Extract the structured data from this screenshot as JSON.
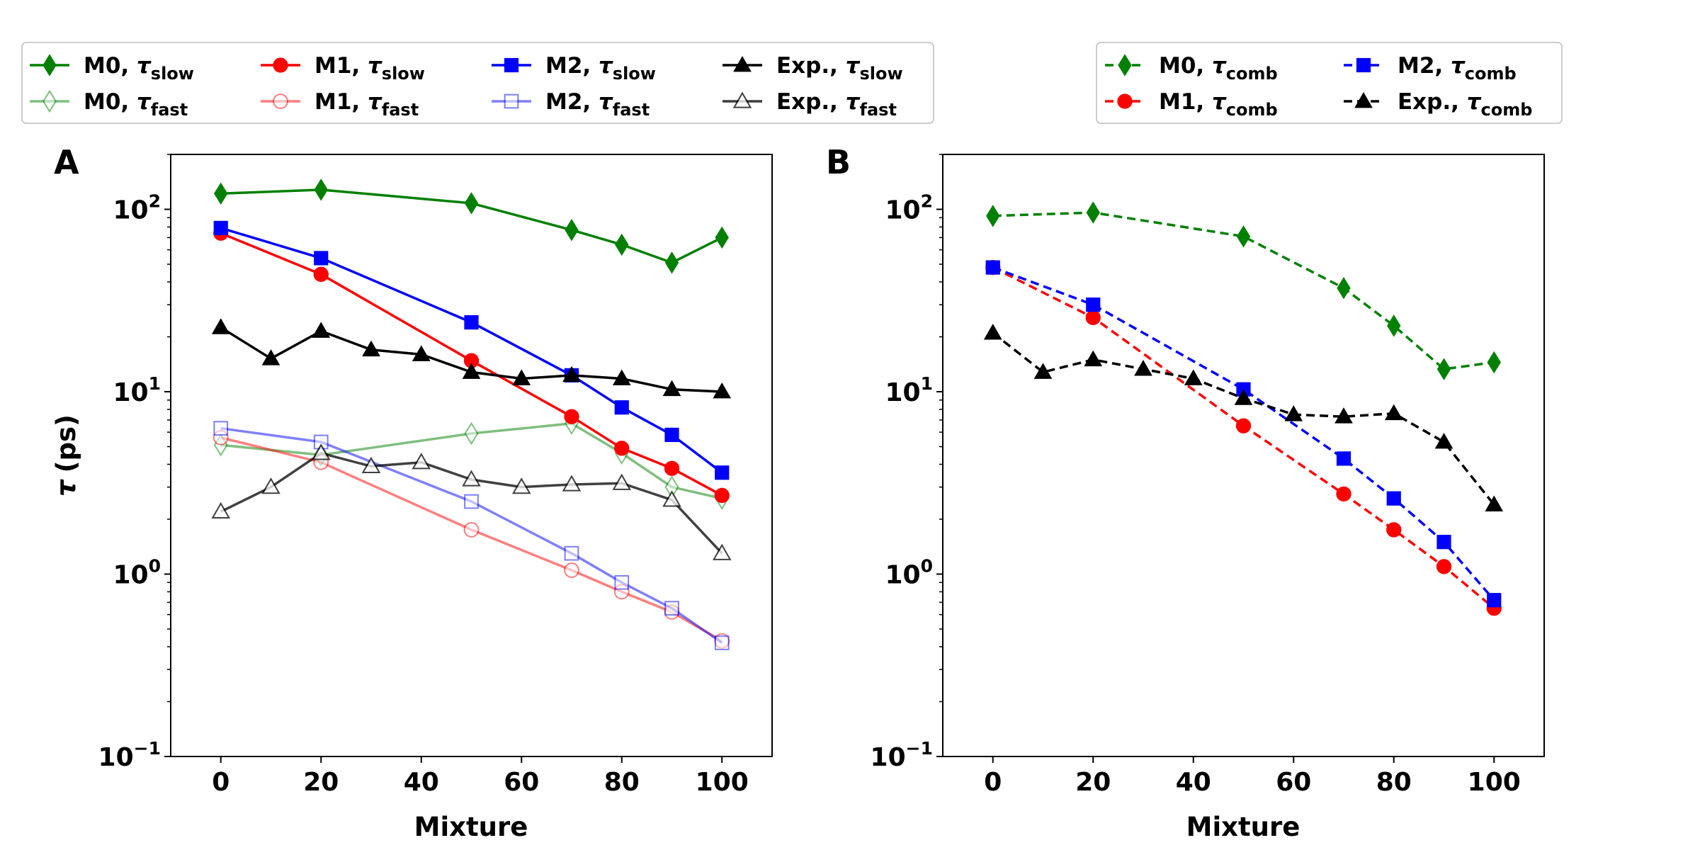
{
  "figure": {
    "panel_labels": [
      "A",
      "B"
    ],
    "tau_sub": {
      "slow": "slow",
      "fast": "fast",
      "comb": "comb"
    }
  },
  "chart_data": [
    {
      "panel": "A",
      "type": "line",
      "xlabel": "Mixture",
      "ylabel_symbol": "τ",
      "ylabel_unit": "(ps)",
      "yscale": "log",
      "xlim": [
        -10,
        110
      ],
      "ylim": [
        0.1,
        200
      ],
      "xticks": [
        0,
        20,
        40,
        60,
        80,
        100
      ],
      "xtick_labels": [
        "0",
        "20",
        "40",
        "60",
        "80",
        "100"
      ],
      "yticks": [
        {
          "value": 0.1,
          "base": "10",
          "exp": "−1"
        },
        {
          "value": 1,
          "base": "10",
          "exp": "0"
        },
        {
          "value": 10,
          "base": "10",
          "exp": "1"
        },
        {
          "value": 100,
          "base": "10",
          "exp": "2"
        }
      ],
      "legend_position": "top-left, above plot",
      "series": [
        {
          "name": "M0, τslow",
          "label_prefix": "M0, ",
          "label_sub": "slow",
          "color": "#008000",
          "opacity": 1,
          "marker": "diamond",
          "filled": true,
          "dashed": false,
          "x": [
            0,
            20,
            50,
            70,
            80,
            90,
            100
          ],
          "y": [
            122,
            128,
            108,
            77,
            64,
            51,
            70
          ]
        },
        {
          "name": "M0, τfast",
          "label_prefix": "M0, ",
          "label_sub": "fast",
          "color": "#008000",
          "opacity": 0.5,
          "marker": "diamond",
          "filled": false,
          "dashed": false,
          "x": [
            0,
            20,
            50,
            70,
            80,
            90,
            100
          ],
          "y": [
            5.1,
            4.5,
            5.9,
            6.7,
            4.6,
            3.0,
            2.6
          ]
        },
        {
          "name": "M1, τslow",
          "label_prefix": "M1, ",
          "label_sub": "slow",
          "color": "#ff0000",
          "opacity": 1,
          "marker": "circle",
          "filled": true,
          "dashed": false,
          "x": [
            0,
            20,
            50,
            70,
            80,
            90,
            100
          ],
          "y": [
            74,
            44,
            14.8,
            7.3,
            4.9,
            3.8,
            2.7
          ]
        },
        {
          "name": "M1, τfast",
          "label_prefix": "M1, ",
          "label_sub": "fast",
          "color": "#ff0000",
          "opacity": 0.5,
          "marker": "circle",
          "filled": false,
          "dashed": false,
          "x": [
            0,
            20,
            50,
            70,
            80,
            90,
            100
          ],
          "y": [
            5.6,
            4.1,
            1.75,
            1.05,
            0.8,
            0.62,
            0.43
          ]
        },
        {
          "name": "M2, τslow",
          "label_prefix": "M2, ",
          "label_sub": "slow",
          "color": "#0000ff",
          "opacity": 1,
          "marker": "square",
          "filled": true,
          "dashed": false,
          "x": [
            0,
            20,
            50,
            70,
            80,
            90,
            100
          ],
          "y": [
            79,
            54,
            24,
            12.3,
            8.2,
            5.8,
            3.6
          ]
        },
        {
          "name": "M2, τfast",
          "label_prefix": "M2, ",
          "label_sub": "fast",
          "color": "#0000ff",
          "opacity": 0.5,
          "marker": "square",
          "filled": false,
          "dashed": false,
          "x": [
            0,
            20,
            50,
            70,
            80,
            90,
            100
          ],
          "y": [
            6.3,
            5.3,
            2.5,
            1.3,
            0.9,
            0.65,
            0.42
          ]
        },
        {
          "name": "Exp., τslow",
          "label_prefix": "Exp., ",
          "label_sub": "slow",
          "color": "#000000",
          "opacity": 1,
          "marker": "triangle",
          "filled": true,
          "dashed": false,
          "x": [
            0,
            10,
            20,
            30,
            40,
            50,
            60,
            70,
            80,
            90,
            100
          ],
          "y": [
            22.5,
            15.2,
            21.5,
            17,
            16,
            12.8,
            11.8,
            12.3,
            11.8,
            10.3,
            10
          ]
        },
        {
          "name": "Exp., τfast",
          "label_prefix": "Exp., ",
          "label_sub": "fast",
          "color": "#000000",
          "opacity": 0.75,
          "marker": "triangle",
          "filled": false,
          "dashed": false,
          "x": [
            0,
            10,
            20,
            30,
            40,
            50,
            60,
            70,
            80,
            90,
            100
          ],
          "y": [
            2.2,
            3.0,
            4.6,
            3.9,
            4.1,
            3.3,
            3.0,
            3.1,
            3.15,
            2.55,
            1.3
          ]
        }
      ]
    },
    {
      "panel": "B",
      "type": "line",
      "xlabel": "Mixture",
      "yscale": "log",
      "xlim": [
        -10,
        110
      ],
      "ylim": [
        0.1,
        200
      ],
      "xticks": [
        0,
        20,
        40,
        60,
        80,
        100
      ],
      "xtick_labels": [
        "0",
        "20",
        "40",
        "60",
        "80",
        "100"
      ],
      "yticks": [
        {
          "value": 0.1,
          "base": "10",
          "exp": "−1"
        },
        {
          "value": 1,
          "base": "10",
          "exp": "0"
        },
        {
          "value": 10,
          "base": "10",
          "exp": "1"
        },
        {
          "value": 100,
          "base": "10",
          "exp": "2"
        }
      ],
      "legend_position": "top-right, above plot",
      "series": [
        {
          "name": "M0, τcomb",
          "label_prefix": "M0, ",
          "label_sub": "comb",
          "color": "#008000",
          "opacity": 1,
          "marker": "diamond",
          "filled": true,
          "dashed": true,
          "x": [
            0,
            20,
            50,
            70,
            80,
            90,
            100
          ],
          "y": [
            92,
            96,
            71,
            37,
            23,
            13.3,
            14.5
          ]
        },
        {
          "name": "M1, τcomb",
          "label_prefix": "M1, ",
          "label_sub": "comb",
          "color": "#ff0000",
          "opacity": 1,
          "marker": "circle",
          "filled": true,
          "dashed": true,
          "x": [
            0,
            20,
            50,
            70,
            80,
            90,
            100
          ],
          "y": [
            48,
            25.5,
            6.5,
            2.75,
            1.75,
            1.1,
            0.65
          ]
        },
        {
          "name": "M2, τcomb",
          "label_prefix": "M2, ",
          "label_sub": "comb",
          "color": "#0000ff",
          "opacity": 1,
          "marker": "square",
          "filled": true,
          "dashed": true,
          "x": [
            0,
            20,
            50,
            70,
            80,
            90,
            100
          ],
          "y": [
            48,
            30,
            10.3,
            4.3,
            2.6,
            1.5,
            0.72
          ]
        },
        {
          "name": "Exp., τcomb",
          "label_prefix": "Exp., ",
          "label_sub": "comb",
          "color": "#000000",
          "opacity": 1,
          "marker": "triangle",
          "filled": true,
          "dashed": true,
          "x": [
            0,
            10,
            20,
            30,
            40,
            50,
            60,
            70,
            80,
            90,
            100
          ],
          "y": [
            21,
            12.8,
            15,
            13.3,
            11.8,
            9.2,
            7.5,
            7.3,
            7.6,
            5.3,
            2.4
          ]
        }
      ]
    }
  ]
}
